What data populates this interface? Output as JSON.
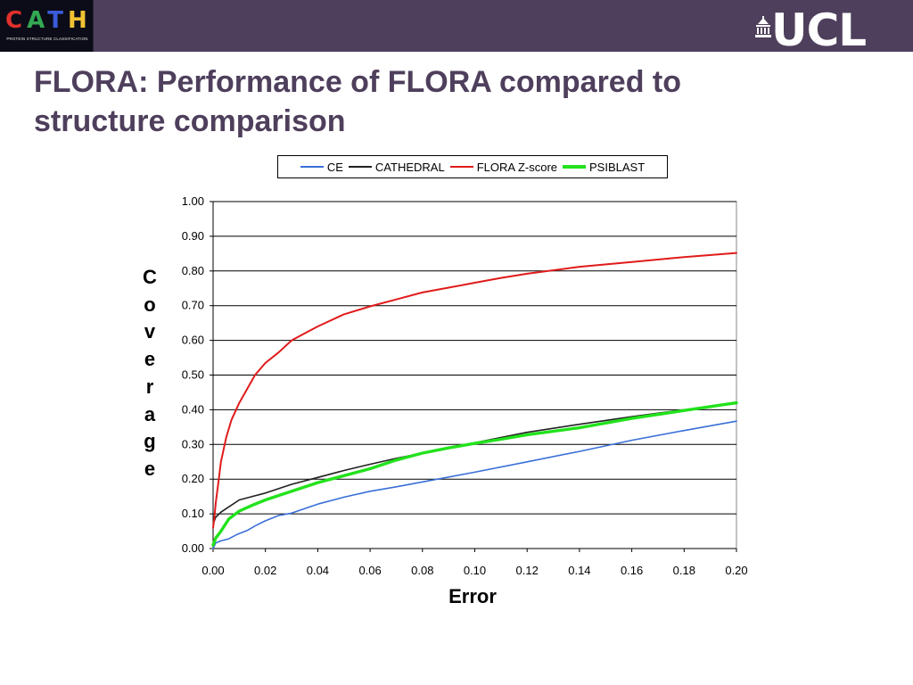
{
  "header": {
    "cath_logo": {
      "letters": [
        "C",
        "A",
        "T",
        "H"
      ],
      "letter_colors": [
        "#e0302c",
        "#34a853",
        "#3b5bdb",
        "#f2c233"
      ],
      "subtitle": "PROTEIN STRUCTURE CLASSIFICATION"
    },
    "ucl_logo": {
      "text": "UCL",
      "icon": "portico-icon"
    },
    "bar_color": "#4e3f5c"
  },
  "slide": {
    "title": "FLORA: Performance of FLORA compared to structure comparison"
  },
  "chart_data": {
    "type": "line",
    "title": "",
    "xlabel": "Error",
    "ylabel": "Coverage",
    "xlim": [
      0,
      0.2
    ],
    "ylim": [
      0,
      1.0
    ],
    "xticks": [
      "0.00",
      "0.02",
      "0.04",
      "0.06",
      "0.08",
      "0.10",
      "0.12",
      "0.14",
      "0.16",
      "0.18",
      "0.20"
    ],
    "yticks": [
      "0.00",
      "0.10",
      "0.20",
      "0.30",
      "0.40",
      "0.50",
      "0.60",
      "0.70",
      "0.80",
      "0.90",
      "1.00"
    ],
    "grid": "horizontal",
    "legend_position": "top",
    "series": [
      {
        "name": "CE",
        "color": "#3a6fd8",
        "width": 1.6,
        "points": [
          [
            0,
            0
          ],
          [
            0.001,
            0.016
          ],
          [
            0.003,
            0.022
          ],
          [
            0.006,
            0.028
          ],
          [
            0.009,
            0.04
          ],
          [
            0.013,
            0.052
          ],
          [
            0.016,
            0.065
          ],
          [
            0.02,
            0.08
          ],
          [
            0.025,
            0.095
          ],
          [
            0.03,
            0.102
          ],
          [
            0.035,
            0.115
          ],
          [
            0.04,
            0.128
          ],
          [
            0.05,
            0.148
          ],
          [
            0.06,
            0.165
          ],
          [
            0.07,
            0.178
          ],
          [
            0.08,
            0.192
          ],
          [
            0.1,
            0.22
          ],
          [
            0.12,
            0.25
          ],
          [
            0.14,
            0.28
          ],
          [
            0.16,
            0.312
          ],
          [
            0.18,
            0.34
          ],
          [
            0.2,
            0.367
          ]
        ]
      },
      {
        "name": "CATHEDRAL",
        "color": "#202020",
        "width": 1.6,
        "points": [
          [
            0,
            0.07
          ],
          [
            0.001,
            0.09
          ],
          [
            0.003,
            0.105
          ],
          [
            0.006,
            0.12
          ],
          [
            0.01,
            0.14
          ],
          [
            0.015,
            0.15
          ],
          [
            0.02,
            0.16
          ],
          [
            0.03,
            0.185
          ],
          [
            0.04,
            0.205
          ],
          [
            0.05,
            0.225
          ],
          [
            0.06,
            0.243
          ],
          [
            0.07,
            0.26
          ],
          [
            0.08,
            0.275
          ],
          [
            0.09,
            0.29
          ],
          [
            0.1,
            0.305
          ],
          [
            0.11,
            0.32
          ],
          [
            0.12,
            0.335
          ],
          [
            0.14,
            0.358
          ],
          [
            0.16,
            0.38
          ],
          [
            0.18,
            0.4
          ],
          [
            0.2,
            0.418
          ]
        ]
      },
      {
        "name": "FLORA Z-score",
        "color": "#e01b1b",
        "width": 2,
        "points": [
          [
            0,
            0.06
          ],
          [
            0.0005,
            0.09
          ],
          [
            0.001,
            0.13
          ],
          [
            0.002,
            0.19
          ],
          [
            0.003,
            0.25
          ],
          [
            0.005,
            0.32
          ],
          [
            0.007,
            0.37
          ],
          [
            0.01,
            0.42
          ],
          [
            0.013,
            0.46
          ],
          [
            0.016,
            0.5
          ],
          [
            0.02,
            0.535
          ],
          [
            0.025,
            0.565
          ],
          [
            0.03,
            0.6
          ],
          [
            0.035,
            0.62
          ],
          [
            0.04,
            0.64
          ],
          [
            0.05,
            0.675
          ],
          [
            0.06,
            0.698
          ],
          [
            0.07,
            0.718
          ],
          [
            0.08,
            0.738
          ],
          [
            0.09,
            0.752
          ],
          [
            0.1,
            0.766
          ],
          [
            0.11,
            0.78
          ],
          [
            0.12,
            0.792
          ],
          [
            0.14,
            0.812
          ],
          [
            0.16,
            0.826
          ],
          [
            0.18,
            0.84
          ],
          [
            0.2,
            0.852
          ]
        ]
      },
      {
        "name": "PSIBLAST",
        "color": "#22e21c",
        "width": 3.4,
        "points": [
          [
            0,
            0.01
          ],
          [
            0.001,
            0.03
          ],
          [
            0.003,
            0.05
          ],
          [
            0.006,
            0.085
          ],
          [
            0.01,
            0.108
          ],
          [
            0.015,
            0.125
          ],
          [
            0.02,
            0.14
          ],
          [
            0.03,
            0.165
          ],
          [
            0.04,
            0.19
          ],
          [
            0.05,
            0.21
          ],
          [
            0.06,
            0.23
          ],
          [
            0.07,
            0.255
          ],
          [
            0.08,
            0.275
          ],
          [
            0.09,
            0.29
          ],
          [
            0.1,
            0.303
          ],
          [
            0.11,
            0.315
          ],
          [
            0.12,
            0.328
          ],
          [
            0.14,
            0.348
          ],
          [
            0.16,
            0.375
          ],
          [
            0.18,
            0.398
          ],
          [
            0.2,
            0.42
          ]
        ]
      }
    ]
  }
}
